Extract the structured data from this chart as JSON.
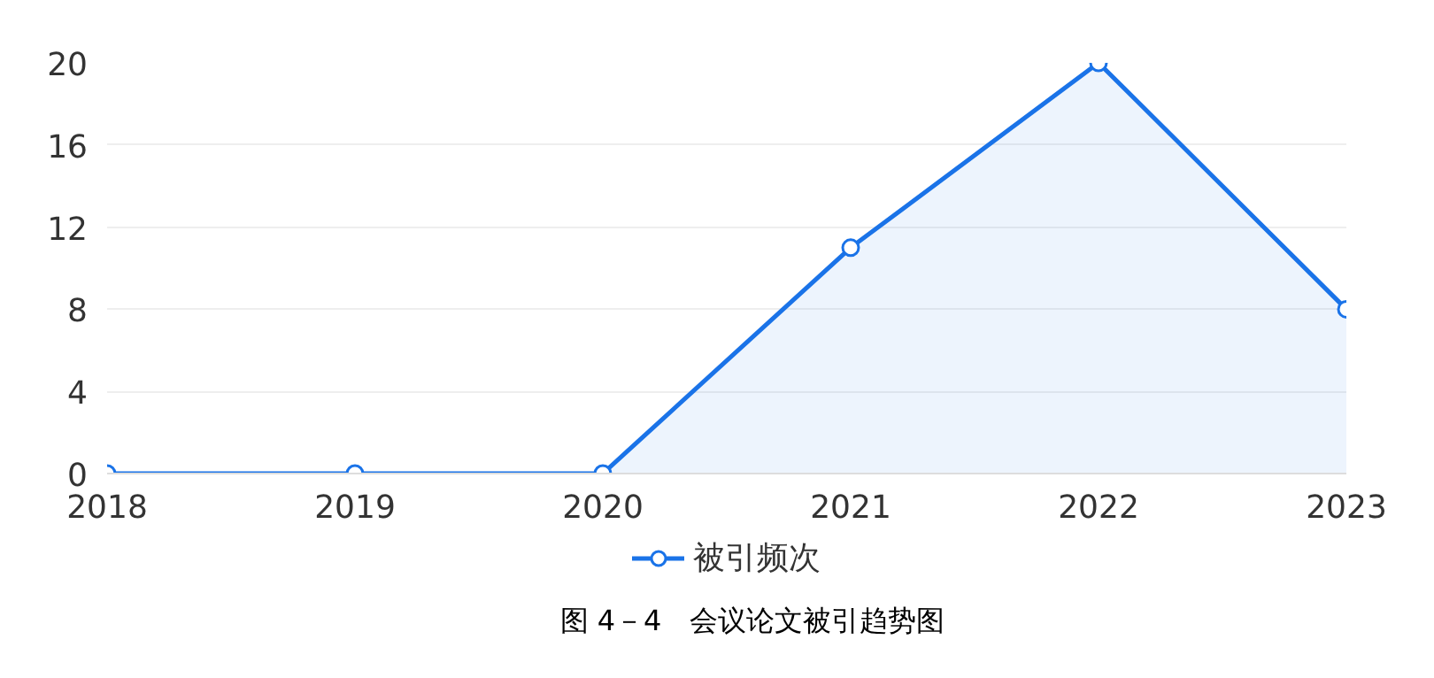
{
  "chart_data": {
    "type": "area",
    "categories": [
      "2018",
      "2019",
      "2020",
      "2021",
      "2022",
      "2023"
    ],
    "series": [
      {
        "name": "被引频次",
        "color": "#1a73e8",
        "values": [
          0,
          0,
          0,
          11,
          20,
          8
        ]
      }
    ],
    "ylim": [
      0,
      20
    ],
    "yticks": [
      0,
      4,
      8,
      12,
      16,
      20
    ],
    "grid": "y",
    "legend": "bottom",
    "marker": "circle",
    "line_style": "solid",
    "annotations": [
      "图 4－4　会议论文被引趋势图"
    ]
  }
}
